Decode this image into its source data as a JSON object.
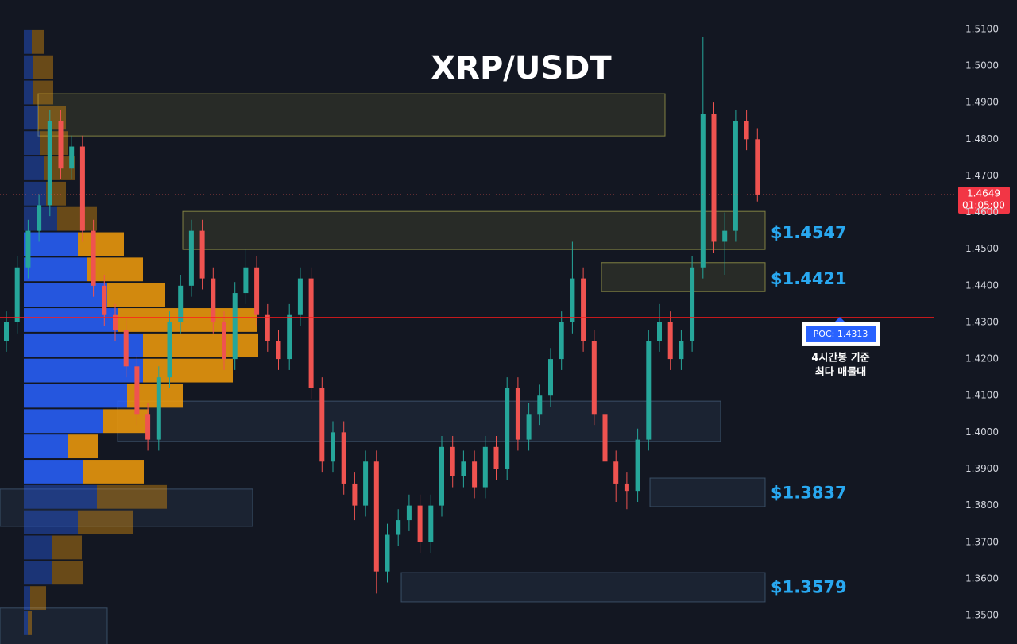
{
  "chart_data": {
    "type": "candlestick",
    "title": "XRP/USDT",
    "up_color": "#26a69a",
    "down_color": "#ef5350",
    "candles": {
      "open": [
        1.425,
        1.43,
        1.445,
        1.455,
        1.462,
        1.485,
        1.472,
        1.478,
        1.455,
        1.44,
        1.432,
        1.428,
        1.418,
        1.405,
        1.398,
        1.415,
        1.43,
        1.44,
        1.455,
        1.442,
        1.43,
        1.42,
        1.438,
        1.445,
        1.432,
        1.425,
        1.42,
        1.432,
        1.442,
        1.412,
        1.392,
        1.4,
        1.386,
        1.38,
        1.392,
        1.362,
        1.372,
        1.376,
        1.38,
        1.37,
        1.38,
        1.396,
        1.388,
        1.392,
        1.385,
        1.396,
        1.39,
        1.412,
        1.398,
        1.405,
        1.41,
        1.42,
        1.43,
        1.442,
        1.425,
        1.405,
        1.392,
        1.386,
        1.384,
        1.398,
        1.425,
        1.43,
        1.42,
        1.425,
        1.445,
        1.487,
        1.452,
        1.455,
        1.485,
        1.48
      ],
      "high": [
        1.433,
        1.448,
        1.458,
        1.465,
        1.488,
        1.488,
        1.481,
        1.481,
        1.458,
        1.443,
        1.435,
        1.431,
        1.421,
        1.408,
        1.418,
        1.433,
        1.443,
        1.458,
        1.458,
        1.445,
        1.433,
        1.441,
        1.45,
        1.448,
        1.435,
        1.428,
        1.435,
        1.445,
        1.445,
        1.415,
        1.403,
        1.403,
        1.389,
        1.395,
        1.395,
        1.375,
        1.379,
        1.383,
        1.383,
        1.383,
        1.399,
        1.399,
        1.395,
        1.395,
        1.399,
        1.399,
        1.415,
        1.415,
        1.408,
        1.413,
        1.423,
        1.433,
        1.452,
        1.445,
        1.428,
        1.408,
        1.395,
        1.389,
        1.401,
        1.428,
        1.435,
        1.433,
        1.428,
        1.448,
        1.508,
        1.49,
        1.46,
        1.488,
        1.488,
        1.483
      ],
      "low": [
        1.422,
        1.427,
        1.442,
        1.452,
        1.459,
        1.469,
        1.469,
        1.452,
        1.437,
        1.429,
        1.425,
        1.415,
        1.402,
        1.395,
        1.395,
        1.412,
        1.427,
        1.437,
        1.439,
        1.427,
        1.417,
        1.417,
        1.435,
        1.429,
        1.422,
        1.417,
        1.417,
        1.429,
        1.409,
        1.389,
        1.389,
        1.383,
        1.376,
        1.377,
        1.356,
        1.359,
        1.369,
        1.373,
        1.367,
        1.367,
        1.377,
        1.385,
        1.385,
        1.382,
        1.382,
        1.387,
        1.387,
        1.395,
        1.395,
        1.402,
        1.407,
        1.417,
        1.427,
        1.422,
        1.402,
        1.389,
        1.381,
        1.379,
        1.381,
        1.395,
        1.422,
        1.417,
        1.417,
        1.422,
        1.442,
        1.449,
        1.443,
        1.452,
        1.477,
        1.463
      ],
      "close": [
        1.43,
        1.445,
        1.455,
        1.462,
        1.485,
        1.472,
        1.478,
        1.455,
        1.44,
        1.432,
        1.428,
        1.418,
        1.405,
        1.398,
        1.415,
        1.43,
        1.44,
        1.455,
        1.442,
        1.43,
        1.42,
        1.438,
        1.445,
        1.432,
        1.425,
        1.42,
        1.432,
        1.442,
        1.412,
        1.392,
        1.4,
        1.386,
        1.38,
        1.392,
        1.362,
        1.372,
        1.376,
        1.38,
        1.37,
        1.38,
        1.396,
        1.388,
        1.392,
        1.385,
        1.396,
        1.39,
        1.412,
        1.398,
        1.405,
        1.41,
        1.42,
        1.43,
        1.442,
        1.425,
        1.405,
        1.392,
        1.386,
        1.384,
        1.398,
        1.425,
        1.43,
        1.42,
        1.425,
        1.445,
        1.487,
        1.452,
        1.455,
        1.485,
        1.48,
        1.4649
      ]
    },
    "volume_profile": {
      "bins": [
        1.51,
        1.5031,
        1.4962,
        1.4893,
        1.4824,
        1.4755,
        1.4686,
        1.4617,
        1.4548,
        1.4479,
        1.441,
        1.4341,
        1.4272,
        1.4203,
        1.4134,
        1.4065,
        1.3996,
        1.3927,
        1.3858,
        1.3789,
        1.372,
        1.3651,
        1.3582,
        1.3513,
        1.3444
      ],
      "buy": [
        10,
        12,
        12,
        18,
        20,
        25,
        28,
        42,
        68,
        80,
        105,
        118,
        150,
        150,
        130,
        100,
        55,
        75,
        92,
        68,
        35,
        35,
        8,
        5
      ],
      "sell": [
        15,
        25,
        25,
        35,
        36,
        40,
        25,
        50,
        58,
        70,
        73,
        175,
        145,
        113,
        70,
        57,
        38,
        76,
        88,
        70,
        38,
        40,
        20,
        5
      ]
    },
    "zones": [
      {
        "top": 1.4924,
        "bottom": 1.4809
      },
      {
        "top": 1.4603,
        "bottom": 1.4499
      },
      {
        "top": 1.4463,
        "bottom": 1.4384
      },
      {
        "top": 1.4085,
        "bottom": 1.3975
      },
      {
        "top": 1.3875,
        "bottom": 1.3797
      },
      {
        "top": 1.3845,
        "bottom": 1.3743
      },
      {
        "top": 1.3617,
        "bottom": 1.3537
      },
      {
        "top": 1.352,
        "bottom": 1.342
      }
    ],
    "levels": [
      {
        "value": 1.4547,
        "label": "$1.4547"
      },
      {
        "value": 1.4421,
        "label": "$1.4421"
      },
      {
        "value": 1.3837,
        "label": "$1.3837"
      },
      {
        "value": 1.3579,
        "label": "$1.3579"
      }
    ],
    "poc": {
      "value": 1.4313,
      "label": "POC: 1.4313"
    },
    "annotation": [
      "4시간봉 기준",
      "최다 매물대"
    ],
    "current_price": {
      "value": 1.4649,
      "label": "1.4649"
    },
    "countdown": "01:05:00",
    "ylim": [
      1.3422,
      1.518
    ],
    "yticks": [
      {
        "value": 1.51,
        "label": "1.5100"
      },
      {
        "value": 1.5,
        "label": "1.5000"
      },
      {
        "value": 1.49,
        "label": "1.4900"
      },
      {
        "value": 1.48,
        "label": "1.4800"
      },
      {
        "value": 1.47,
        "label": "1.4700"
      },
      {
        "value": 1.46,
        "label": "1.4600"
      },
      {
        "value": 1.45,
        "label": "1.4500"
      },
      {
        "value": 1.44,
        "label": "1.4400"
      },
      {
        "value": 1.43,
        "label": "1.4300"
      },
      {
        "value": 1.42,
        "label": "1.4200"
      },
      {
        "value": 1.41,
        "label": "1.4100"
      },
      {
        "value": 1.4,
        "label": "1.4000"
      },
      {
        "value": 1.39,
        "label": "1.3900"
      },
      {
        "value": 1.38,
        "label": "1.3800"
      },
      {
        "value": 1.37,
        "label": "1.3700"
      },
      {
        "value": 1.36,
        "label": "1.3600"
      },
      {
        "value": 1.35,
        "label": "1.3500"
      }
    ]
  }
}
